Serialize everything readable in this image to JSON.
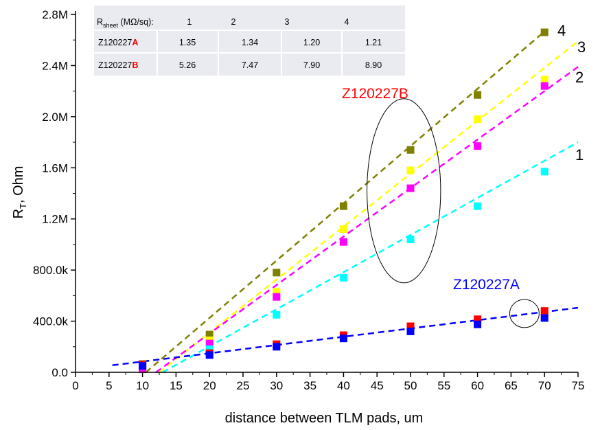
{
  "chart_data": {
    "type": "scatter",
    "xlabel": "distance between TLM pads, um",
    "ylabel_main": "R",
    "ylabel_sub": "T",
    "ylabel_rest": ", Ohm",
    "xlim": [
      0,
      75
    ],
    "ylim": [
      0,
      2800000
    ],
    "x_ticks": [
      0,
      5,
      10,
      15,
      20,
      25,
      30,
      35,
      40,
      45,
      50,
      55,
      60,
      65,
      70,
      75
    ],
    "x_tick_labels": [
      "0",
      "5",
      "10",
      "15",
      "20",
      "25",
      "30",
      "35",
      "40",
      "45",
      "50",
      "55",
      "60",
      "65",
      "70",
      "75"
    ],
    "y_ticks": [
      0,
      400000,
      800000,
      1200000,
      1600000,
      2000000,
      2400000,
      2800000
    ],
    "y_tick_labels": [
      "0.0",
      "400.0k",
      "800.0k",
      "1.2M",
      "1.6M",
      "2.0M",
      "2.4M",
      "2.8M"
    ],
    "series": [
      {
        "group": "B",
        "line_number": "4",
        "color": "#808000",
        "x": [
          10,
          20,
          30,
          40,
          50,
          60,
          70
        ],
        "y": [
          65000,
          295000,
          780000,
          1300000,
          1740000,
          2170000,
          2660000
        ],
        "fit_from": [
          10.5,
          0
        ],
        "fit_to": [
          70.3,
          2680000
        ]
      },
      {
        "group": "B",
        "line_number": "3",
        "color": "#ffff00",
        "x": [
          10,
          20,
          30,
          40,
          50,
          60,
          70
        ],
        "y": [
          40000,
          250000,
          630000,
          1120000,
          1580000,
          1980000,
          2290000
        ],
        "fit_from": [
          12.5,
          0
        ],
        "fit_to": [
          75,
          2590000
        ]
      },
      {
        "group": "B",
        "line_number": "2",
        "color": "#ff00ff",
        "x": [
          10,
          20,
          30,
          40,
          50,
          60,
          70
        ],
        "y": [
          25000,
          225000,
          590000,
          1020000,
          1440000,
          1770000,
          2240000
        ],
        "fit_from": [
          12.0,
          0
        ],
        "fit_to": [
          75,
          2390000
        ]
      },
      {
        "group": "B",
        "line_number": "1",
        "color": "#00ffff",
        "x": [
          10,
          20,
          30,
          40,
          50,
          60,
          70
        ],
        "y": [
          55000,
          180000,
          450000,
          740000,
          1040000,
          1300000,
          1570000
        ],
        "fit_from": [
          13.0,
          0
        ],
        "fit_to": [
          75,
          1800000
        ]
      },
      {
        "group": "A",
        "color": "#ff0000",
        "x": [
          10,
          20,
          30,
          40,
          50,
          60,
          70
        ],
        "y": [
          60000,
          150000,
          220000,
          290000,
          360000,
          415000,
          480000
        ]
      },
      {
        "group": "A",
        "color": "#0000ff",
        "x": [
          10,
          20,
          30,
          40,
          50,
          60,
          70
        ],
        "y": [
          50000,
          135000,
          200000,
          265000,
          320000,
          375000,
          425000
        ],
        "fit_from": [
          5.5,
          55000
        ],
        "fit_to": [
          75,
          505000
        ]
      }
    ],
    "annotations": {
      "label_B": "Z120227B",
      "label_B_color": "#ff0000",
      "label_A": "Z120227A",
      "label_A_color": "#0000ff",
      "ellipse_B": {
        "cx": 49,
        "cy": 1420000,
        "rx": 5.5,
        "ry": 720000
      },
      "ellipse_A": {
        "cx": 67,
        "cy": 460000,
        "rx": 2.2,
        "ry": 110000
      }
    },
    "inset_table": {
      "header_label": "R",
      "header_sub": "sheet",
      "header_unit": " (MΩ/sq):",
      "columns": [
        "1",
        "2",
        "3",
        "4"
      ],
      "rows": [
        {
          "prefix": "Z120227",
          "suffix": "A",
          "values": [
            "1.35",
            "1.34",
            "1.20",
            "1.21"
          ]
        },
        {
          "prefix": "Z120227",
          "suffix": "B",
          "values": [
            "5.26",
            "7.47",
            "7.90",
            "8.90"
          ]
        }
      ],
      "suffix_color": "#ff0000"
    }
  }
}
